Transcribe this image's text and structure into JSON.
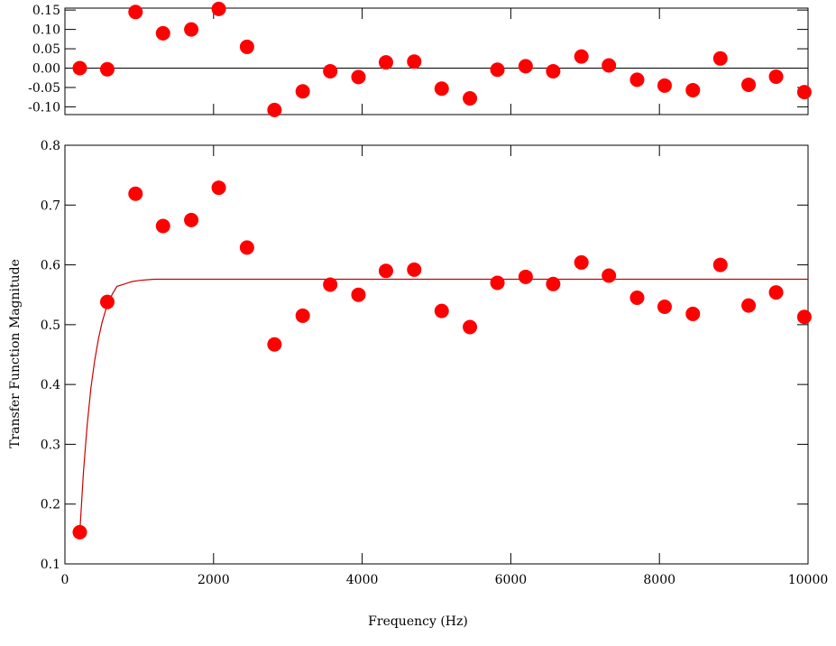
{
  "chart_data": [
    {
      "type": "scatter",
      "panel": "residuals",
      "title": "",
      "xlabel": "",
      "ylabel": "",
      "xlim": [
        0,
        10000
      ],
      "ylim": [
        -0.12,
        0.155
      ],
      "yticks": [
        -0.1,
        -0.05,
        0.0,
        0.05,
        0.1,
        0.15
      ],
      "ytick_labels": [
        "-0.10",
        "-0.05",
        "0.00",
        "0.05",
        "0.10",
        "0.15"
      ],
      "zero_line": true,
      "grid": false,
      "series": [
        {
          "color": "#ff0000",
          "x": [
            200,
            570,
            950,
            1320,
            1700,
            2070,
            2450,
            2820,
            3200,
            3570,
            3950,
            4320,
            4700,
            5070,
            5450,
            5820,
            6200,
            6570,
            6950,
            7320,
            7700,
            8070,
            8450,
            8820,
            9200,
            9570,
            9950
          ],
          "y": [
            0.0,
            -0.003,
            0.145,
            0.09,
            0.1,
            0.153,
            0.055,
            -0.108,
            -0.06,
            -0.008,
            -0.023,
            0.015,
            0.017,
            -0.053,
            -0.078,
            -0.004,
            0.005,
            -0.008,
            0.03,
            0.007,
            -0.03,
            -0.045,
            -0.057,
            0.025,
            -0.043,
            -0.022,
            -0.062
          ]
        }
      ]
    },
    {
      "type": "scatter",
      "panel": "magnitude",
      "title": "",
      "xlabel": "Frequency (Hz)",
      "ylabel": "Transfer Function Magnitude",
      "xlim": [
        0,
        10000
      ],
      "ylim": [
        0.1,
        0.8
      ],
      "xticks": [
        0,
        2000,
        4000,
        6000,
        8000,
        10000
      ],
      "xtick_labels": [
        "0",
        "2000",
        "4000",
        "6000",
        "8000",
        "10000"
      ],
      "yticks": [
        0.1,
        0.2,
        0.3,
        0.4,
        0.5,
        0.6,
        0.7,
        0.8
      ],
      "ytick_labels": [
        "0.1",
        "0.2",
        "0.3",
        "0.4",
        "0.5",
        "0.6",
        "0.7",
        "0.8"
      ],
      "grid": false,
      "series": [
        {
          "kind": "points",
          "color": "#ff0000",
          "x": [
            200,
            570,
            950,
            1320,
            1700,
            2070,
            2450,
            2820,
            3200,
            3570,
            3950,
            4320,
            4700,
            5070,
            5450,
            5820,
            6200,
            6570,
            6950,
            7320,
            7700,
            8070,
            8450,
            8820,
            9200,
            9570,
            9950
          ],
          "y": [
            0.153,
            0.538,
            0.719,
            0.665,
            0.675,
            0.729,
            0.629,
            0.467,
            0.515,
            0.567,
            0.55,
            0.59,
            0.592,
            0.523,
            0.496,
            0.57,
            0.58,
            0.568,
            0.604,
            0.582,
            0.545,
            0.53,
            0.518,
            0.6,
            0.532,
            0.554,
            0.513
          ]
        },
        {
          "kind": "fit-line",
          "color": "#cc0000",
          "x": [
            200,
            250,
            300,
            350,
            400,
            450,
            500,
            550,
            600,
            650,
            700,
            800,
            900,
            1000,
            1100,
            1200,
            1500,
            2000,
            3000,
            4000,
            5000,
            6000,
            7000,
            8000,
            9000,
            10000
          ],
          "y": [
            0.153,
            0.255,
            0.333,
            0.394,
            0.44,
            0.476,
            0.504,
            0.525,
            0.542,
            0.554,
            0.564,
            0.568,
            0.572,
            0.574,
            0.575,
            0.576,
            0.576,
            0.576,
            0.576,
            0.576,
            0.576,
            0.576,
            0.576,
            0.576,
            0.576,
            0.576
          ]
        }
      ]
    }
  ]
}
